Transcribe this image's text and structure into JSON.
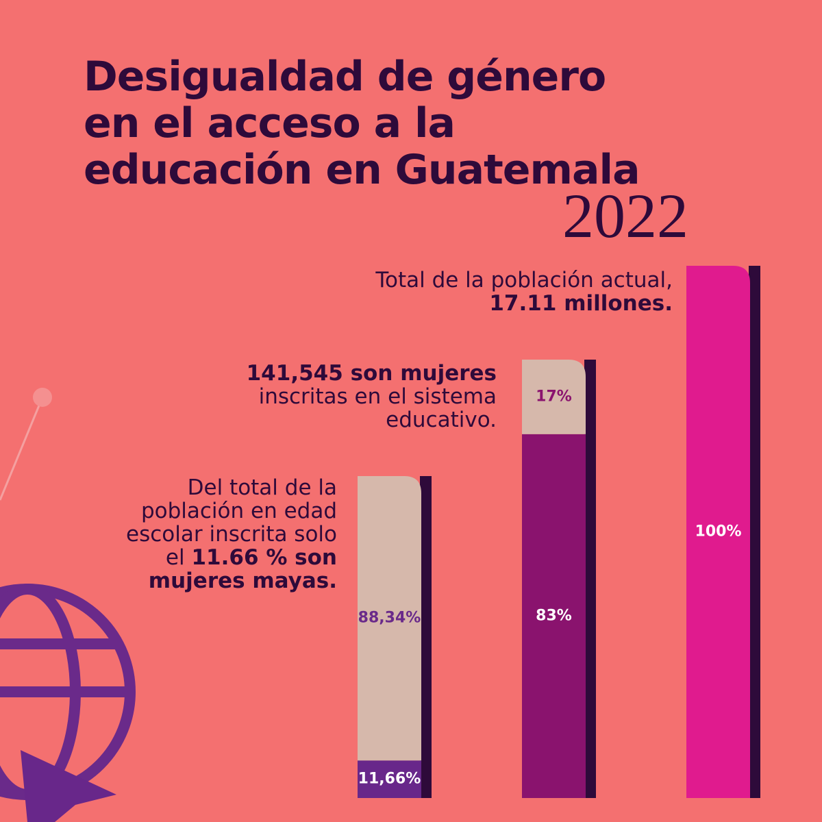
{
  "title_lines": [
    "Desigualdad de género",
    "en el acceso a la",
    "educación en Guatemala"
  ],
  "year": "2022",
  "annotations": [
    {
      "text": "Total de la población actual,",
      "bold": "17.11 millones."
    },
    {
      "bold": "141,545 son mujeres",
      "text": "inscritas en el sistema educativo."
    },
    {
      "text": "Del total de la población en edad escolar inscrita solo el",
      "bold": "11.66 % son mujeres mayas."
    }
  ],
  "bars": [
    {
      "values": [
        11.66,
        88.34
      ],
      "value_labels": [
        "11,66%",
        "88,34%"
      ],
      "colors": [
        "#68278a",
        "#d6b8ab"
      ],
      "label_colors": [
        "#ffffff",
        "#6a2a8a"
      ]
    },
    {
      "values": [
        83,
        17
      ],
      "value_labels": [
        "83%",
        "17%"
      ],
      "colors": [
        "#8a136e",
        "#d6b8ab"
      ],
      "label_colors": [
        "#ffffff",
        "#8a136e"
      ]
    },
    {
      "values": [
        100
      ],
      "value_labels": [
        "100%"
      ],
      "colors": [
        "#e01b8e"
      ],
      "label_colors": [
        "#ffffff"
      ]
    }
  ]
}
